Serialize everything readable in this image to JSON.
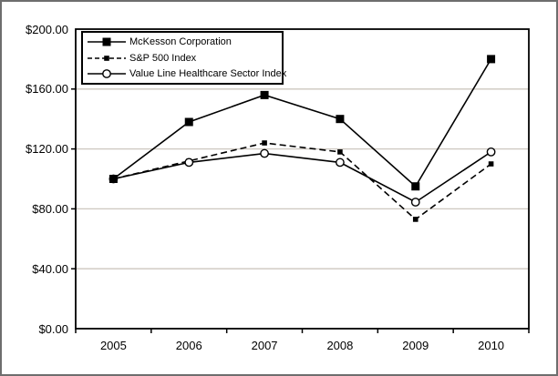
{
  "chart_data": {
    "type": "line",
    "title": "",
    "xlabel": "",
    "ylabel": "",
    "categories": [
      "2005",
      "2006",
      "2007",
      "2008",
      "2009",
      "2010"
    ],
    "series": [
      {
        "name": "McKesson Corporation",
        "line": "solid",
        "marker": "filled-square",
        "values": [
          100,
          138,
          156,
          140,
          95,
          180
        ]
      },
      {
        "name": "S&P 500 Index",
        "line": "dashed",
        "marker": "small-filled-square",
        "values": [
          100,
          112,
          124,
          118,
          73,
          110
        ]
      },
      {
        "name": "Value Line Healthcare Sector Index",
        "line": "solid",
        "marker": "open-circle",
        "values": [
          100,
          111,
          117,
          111,
          84.5,
          118
        ]
      }
    ],
    "ylim": [
      0,
      200
    ],
    "ytick_step": 40,
    "ytick_labels": [
      "$0.00",
      "$40.00",
      "$80.00",
      "$120.00",
      "$160.00",
      "$200.00"
    ],
    "grid": true,
    "legend_position": "top-left"
  },
  "colors": {
    "series_color": "#000000",
    "grid_color": "#cdc7bf",
    "frame_color": "#000000",
    "outer_border": "#6e6e6e",
    "background": "#ffffff"
  }
}
